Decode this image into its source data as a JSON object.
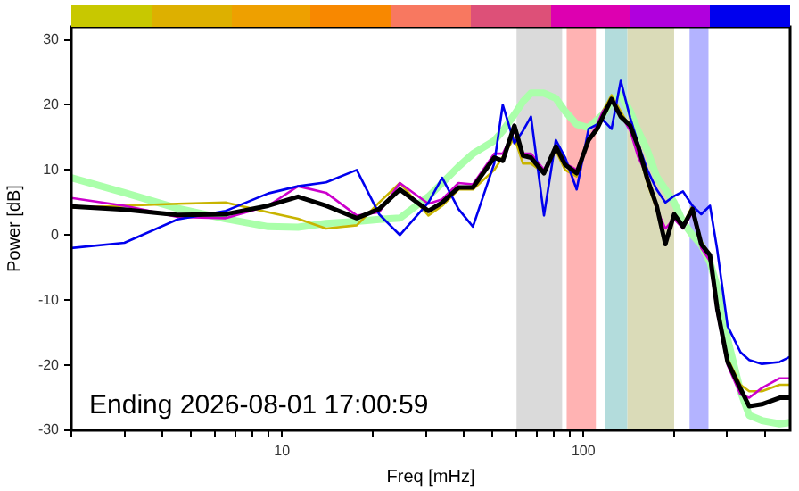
{
  "chart_data": {
    "type": "line",
    "xlabel": "Freq [mHz]",
    "ylabel": "Power [dB]",
    "log": "x",
    "xlim": [
      2,
      485
    ],
    "xticks": [
      {
        "value": 2,
        "label": null
      },
      {
        "value": 3,
        "label": null
      },
      {
        "value": 4,
        "label": null
      },
      {
        "value": 5,
        "label": null
      },
      {
        "value": 6,
        "label": null
      },
      {
        "value": 7,
        "label": null
      },
      {
        "value": 8,
        "label": null
      },
      {
        "value": 9,
        "label": null
      },
      10,
      {
        "value": 20,
        "label": null
      },
      {
        "value": 30,
        "label": null
      },
      {
        "value": 40,
        "label": null
      },
      {
        "value": 50,
        "label": null
      },
      {
        "value": 60,
        "label": null
      },
      {
        "value": 70,
        "label": null
      },
      {
        "value": 80,
        "label": null
      },
      {
        "value": 90,
        "label": null
      },
      100,
      {
        "value": 200,
        "label": null
      },
      {
        "value": 300,
        "label": null
      },
      {
        "value": 400,
        "label": null
      }
    ],
    "ylim": [
      -30,
      32
    ],
    "yticks": [
      -30,
      -20,
      -10,
      0,
      10,
      20,
      30
    ],
    "grid": false,
    "legend": false,
    "marker": "none",
    "line_style": "solid",
    "x": [
      2,
      3,
      4.5,
      6.5,
      9,
      11.3,
      14,
      17.7,
      21,
      24.6,
      30.6,
      34,
      38.5,
      43,
      50.6,
      54,
      59,
      63,
      67,
      74,
      81,
      87,
      95,
      104,
      111,
      116,
      124,
      133,
      143,
      152,
      163,
      175,
      187,
      200,
      214,
      230,
      246,
      263,
      278,
      301,
      332,
      355,
      391,
      448,
      485
    ],
    "series": [
      {
        "color": "#aaffaa",
        "values": [
          8.8,
          6.5,
          4.1,
          2.5,
          1.3,
          1.2,
          1.8,
          2.1,
          2.4,
          2.6,
          5.9,
          8,
          10.5,
          12.5,
          14.5,
          16,
          18.5,
          20.5,
          21.8,
          21.8,
          21,
          19,
          17,
          16.5,
          17.7,
          18.5,
          20.5,
          21.5,
          19,
          16,
          13,
          9,
          7,
          5,
          2,
          0,
          -1.5,
          -4.2,
          -8,
          -16,
          -24,
          -27.7,
          -28.5,
          -29,
          -28.8
        ]
      },
      {
        "color": "#c8b400",
        "values": [
          4.2,
          4.5,
          4.8,
          5,
          3.5,
          2.5,
          1,
          1.5,
          5,
          8,
          3,
          4.5,
          7,
          7,
          10,
          12,
          15,
          11,
          11,
          9.5,
          13,
          10,
          9,
          15,
          16,
          19,
          21.5,
          19,
          16.5,
          13,
          8,
          4,
          -1,
          3,
          1.5,
          4.5,
          -1,
          -3,
          -11,
          -19,
          -23,
          -24,
          -24,
          -23,
          -23
        ]
      },
      {
        "color": "#cc00cc",
        "values": [
          5.7,
          4.5,
          2.8,
          2.6,
          4.5,
          7.5,
          6.5,
          3,
          3.5,
          8,
          4.8,
          5.5,
          8,
          7.8,
          12.5,
          12.5,
          16,
          12.5,
          12.5,
          10,
          13.5,
          11,
          10,
          14.5,
          17,
          19,
          20.5,
          18.5,
          16,
          12,
          9,
          4,
          1,
          2.5,
          1,
          3.5,
          -2,
          -4,
          -12,
          -20,
          -24.5,
          -25,
          -23.5,
          -22,
          -22
        ]
      },
      {
        "color": "#0000ee",
        "values": [
          -2,
          -1.2,
          2.4,
          3.7,
          6.4,
          7.5,
          8.1,
          10,
          3.2,
          0,
          5,
          8.8,
          4,
          1.3,
          11,
          20,
          14.1,
          16,
          18.2,
          3,
          14.6,
          11.9,
          7,
          16.3,
          17,
          17.7,
          16.3,
          23.7,
          18,
          14,
          10,
          7,
          5,
          6,
          6.7,
          4.5,
          3.2,
          4.5,
          -2.3,
          -14,
          -18,
          -19.2,
          -19.8,
          -19.5,
          -18.7
        ]
      },
      {
        "color": "#000000",
        "values": [
          4.4,
          3.9,
          3.1,
          3.2,
          4.5,
          5.9,
          4.5,
          2.6,
          4,
          7,
          3.7,
          5,
          7.3,
          7.3,
          11.9,
          11.4,
          16.8,
          12.2,
          11.9,
          9.5,
          13.6,
          10.8,
          9.5,
          14.6,
          16.3,
          18.2,
          20.9,
          18.2,
          16.8,
          13.6,
          8.6,
          4.5,
          -1.4,
          3.2,
          1.3,
          4,
          -1.4,
          -3.1,
          -11.3,
          -19.5,
          -23.6,
          -26.3,
          -26,
          -25,
          -25
        ]
      }
    ],
    "bands": [
      {
        "axis": "x",
        "from": 60,
        "to": 85,
        "color": "#dadada"
      },
      {
        "axis": "x",
        "from": 88,
        "to": 110,
        "color": "#ffb3b3"
      },
      {
        "axis": "x",
        "from": 118,
        "to": 140,
        "color": "#b3dcdc"
      },
      {
        "axis": "x",
        "from": 140,
        "to": 200,
        "color": "#dadbb8"
      },
      {
        "axis": "x",
        "from": 225,
        "to": 260,
        "color": "#b3b3ff"
      }
    ],
    "annotations": [
      "Ending 2026-08-01 17:00:59"
    ]
  }
}
